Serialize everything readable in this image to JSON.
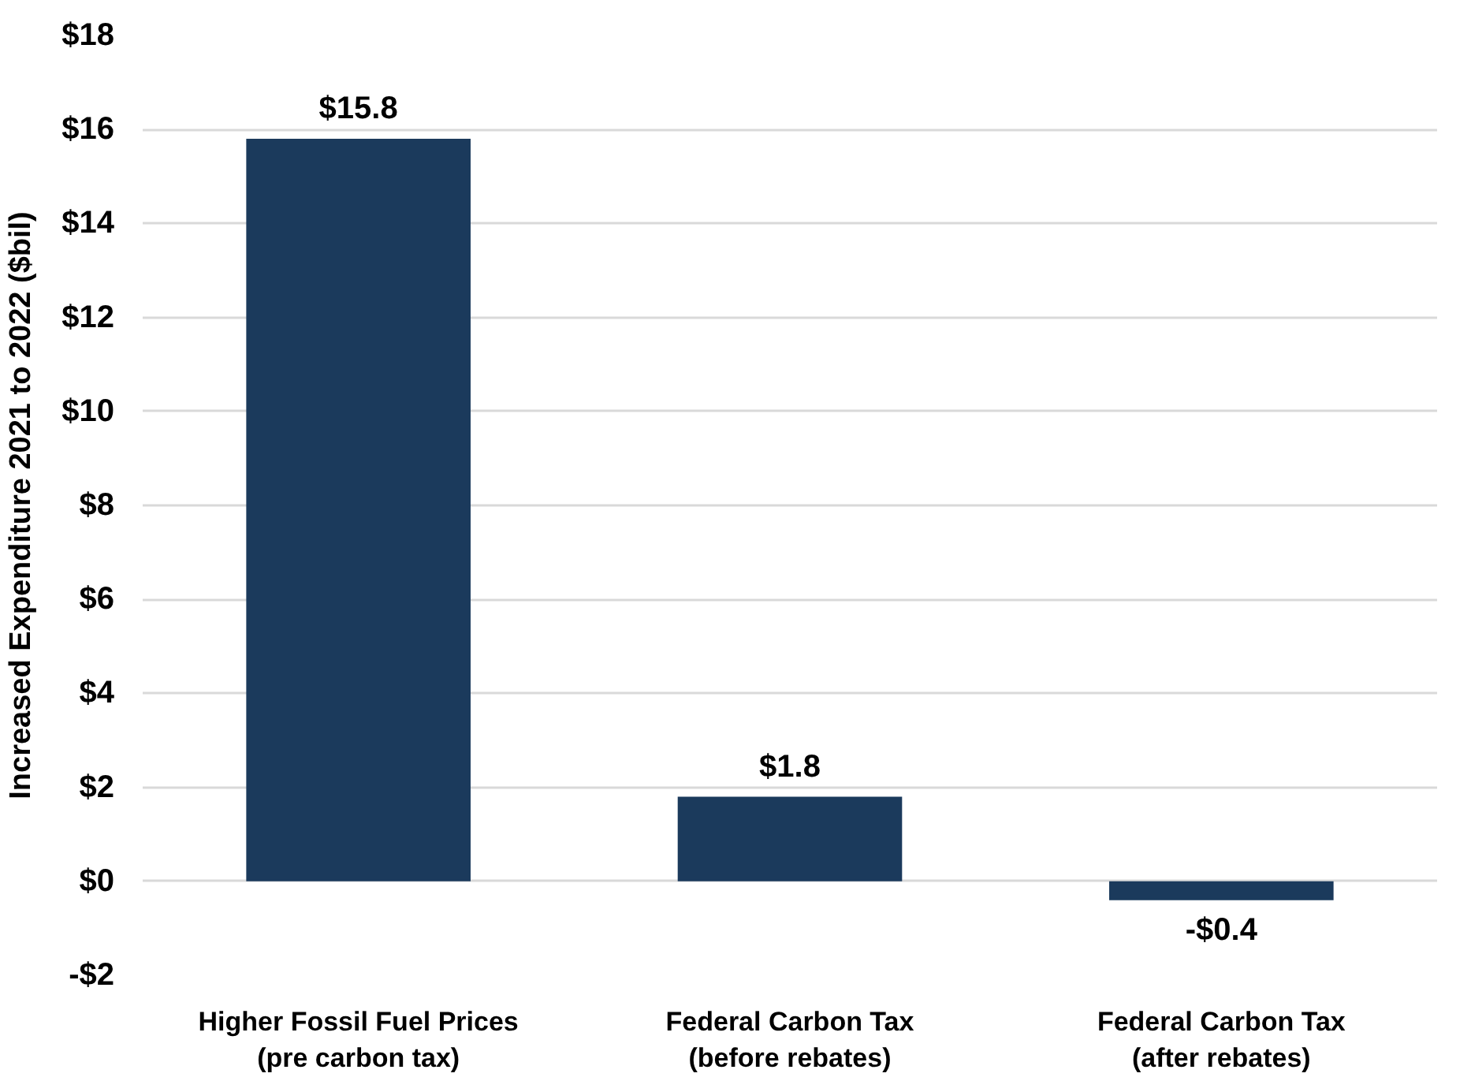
{
  "chart_data": {
    "type": "bar",
    "ylabel": "Increased Expenditure 2021 to 2022 ($bil)",
    "categories": [
      "Higher Fossil Fuel Prices\n(pre carbon tax)",
      "Federal Carbon Tax\n(before rebates)",
      "Federal Carbon Tax\n(after rebates)"
    ],
    "values": [
      15.8,
      1.8,
      -0.4
    ],
    "color": "#1b3a5c",
    "value_labels": [
      "$15.8",
      "$1.8",
      "-$0.4"
    ],
    "ylim": [
      -2,
      18
    ],
    "yticks": [
      {
        "value": -2,
        "label": "-$2"
      },
      {
        "value": 0,
        "label": "$0"
      },
      {
        "value": 2,
        "label": "$2"
      },
      {
        "value": 4,
        "label": "$4"
      },
      {
        "value": 6,
        "label": "$6"
      },
      {
        "value": 8,
        "label": "$8"
      },
      {
        "value": 10,
        "label": "$10"
      },
      {
        "value": 12,
        "label": "$12"
      },
      {
        "value": 14,
        "label": "$14"
      },
      {
        "value": 16,
        "label": "$16"
      },
      {
        "value": 18,
        "label": "$18"
      }
    ],
    "grid": "y"
  }
}
